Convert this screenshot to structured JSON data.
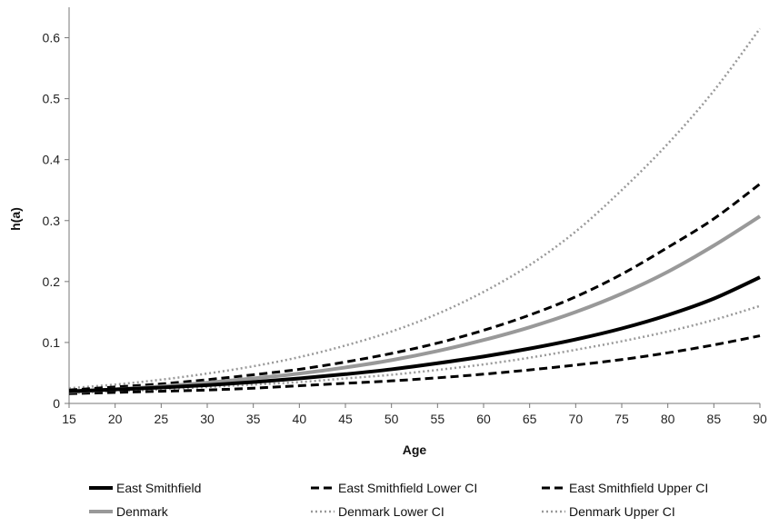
{
  "chart_data": {
    "type": "line",
    "title": "",
    "xlabel": "Age",
    "ylabel": "h(a)",
    "xlim": [
      15,
      90
    ],
    "ylim": [
      0,
      0.65
    ],
    "x_ticks": [
      "15",
      "20",
      "25",
      "30",
      "35",
      "40",
      "45",
      "50",
      "55",
      "60",
      "65",
      "70",
      "75",
      "80",
      "85",
      "90"
    ],
    "y_ticks": [
      "0",
      "0.1",
      "0.2",
      "0.3",
      "0.4",
      "0.5",
      "0.6"
    ],
    "grid": false,
    "legend_position": "bottom",
    "x": [
      15,
      20,
      25,
      30,
      35,
      40,
      45,
      50,
      55,
      60,
      65,
      70,
      75,
      80,
      85,
      90
    ],
    "series": [
      {
        "name": "East Smithfield",
        "color": "#000000",
        "style": "solid",
        "values": [
          0.02,
          0.023,
          0.026,
          0.03,
          0.035,
          0.041,
          0.048,
          0.056,
          0.066,
          0.077,
          0.09,
          0.105,
          0.123,
          0.145,
          0.172,
          0.207
        ]
      },
      {
        "name": "East Smithfield Lower CI",
        "color": "#000000",
        "style": "dashed",
        "values": [
          0.016,
          0.018,
          0.02,
          0.022,
          0.025,
          0.029,
          0.033,
          0.037,
          0.042,
          0.048,
          0.055,
          0.063,
          0.072,
          0.083,
          0.096,
          0.111
        ]
      },
      {
        "name": "East Smithfield Upper CI",
        "color": "#000000",
        "style": "dashed",
        "values": [
          0.022,
          0.027,
          0.032,
          0.039,
          0.047,
          0.056,
          0.068,
          0.082,
          0.099,
          0.12,
          0.145,
          0.175,
          0.212,
          0.256,
          0.303,
          0.36
        ]
      },
      {
        "name": "Denmark",
        "color": "#999999",
        "style": "solid",
        "values": [
          0.019,
          0.023,
          0.028,
          0.034,
          0.041,
          0.049,
          0.059,
          0.071,
          0.086,
          0.104,
          0.125,
          0.15,
          0.18,
          0.216,
          0.259,
          0.307
        ]
      },
      {
        "name": "Denmark Lower CI",
        "color": "#999999",
        "style": "dotted",
        "values": [
          0.017,
          0.02,
          0.023,
          0.027,
          0.031,
          0.035,
          0.041,
          0.047,
          0.055,
          0.064,
          0.075,
          0.088,
          0.102,
          0.118,
          0.137,
          0.16
        ]
      },
      {
        "name": "Denmark Upper CI",
        "color": "#999999",
        "style": "dotted",
        "values": [
          0.025,
          0.031,
          0.039,
          0.049,
          0.061,
          0.076,
          0.095,
          0.118,
          0.147,
          0.183,
          0.227,
          0.282,
          0.35,
          0.426,
          0.513,
          0.615
        ]
      }
    ]
  }
}
